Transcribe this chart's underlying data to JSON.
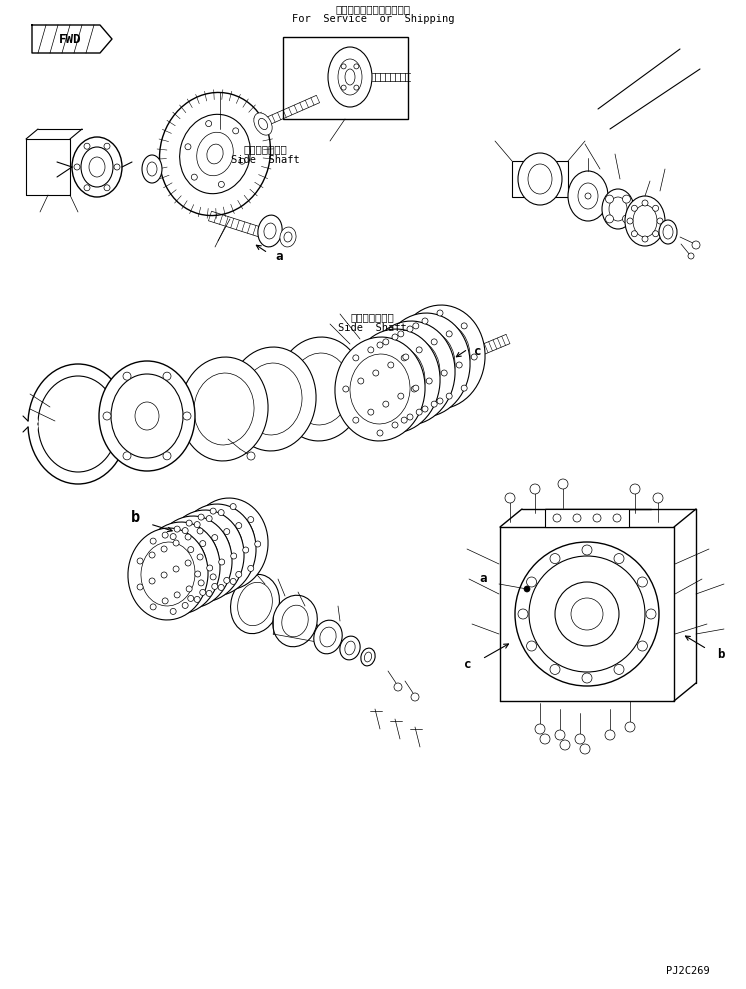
{
  "bg_color": "#ffffff",
  "line_color": "#000000",
  "fig_width": 7.46,
  "fig_height": 9.89,
  "dpi": 100,
  "top_label_jp": "サービスまたは返送部品用",
  "top_label_en": "For  Service  or  Shipping",
  "side_shaft_label1_jp": "サイドシャフト",
  "side_shaft_label1_en": "Side  Shaft",
  "side_shaft_label2_jp": "サイドシャフト",
  "side_shaft_label2_en": "Side  Shaft",
  "label_a1": "a",
  "label_a2": "a",
  "label_b1": "b",
  "label_b2": "b",
  "label_c1": "c",
  "label_c2": "c",
  "fwd_label": "FWD",
  "part_code": "PJ2C269"
}
